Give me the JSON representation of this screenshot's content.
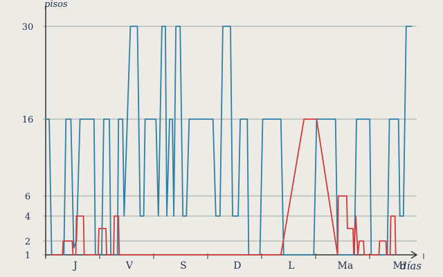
{
  "chart_data": {
    "type": "line",
    "title": "",
    "ylabel": "pisos",
    "xlabel": "días",
    "ylim": [
      1,
      30
    ],
    "y_ticks": [
      1,
      2,
      4,
      6,
      16,
      30
    ],
    "day_labels": [
      "J",
      "V",
      "S",
      "D",
      "L",
      "Ma",
      "Mi"
    ],
    "grid": true,
    "series": [
      {
        "color": "#2f7fa4",
        "points": [
          [
            0,
            16
          ],
          [
            0.1,
            16
          ],
          [
            0.17,
            1
          ],
          [
            0.52,
            1
          ],
          [
            0.58,
            16
          ],
          [
            0.72,
            16
          ],
          [
            0.8,
            1.5
          ],
          [
            0.88,
            2
          ],
          [
            0.98,
            16
          ],
          [
            1.38,
            16
          ],
          [
            1.42,
            1
          ],
          [
            1.6,
            1
          ],
          [
            1.66,
            16
          ],
          [
            1.82,
            16
          ],
          [
            1.86,
            1
          ],
          [
            2.05,
            1
          ],
          [
            2.08,
            16
          ],
          [
            2.2,
            16
          ],
          [
            2.24,
            4
          ],
          [
            2.42,
            30
          ],
          [
            2.62,
            30
          ],
          [
            2.7,
            4
          ],
          [
            2.8,
            4
          ],
          [
            2.84,
            16
          ],
          [
            3.15,
            16
          ],
          [
            3.22,
            4
          ],
          [
            3.32,
            30
          ],
          [
            3.42,
            30
          ],
          [
            3.46,
            4
          ],
          [
            3.54,
            16
          ],
          [
            3.62,
            16
          ],
          [
            3.66,
            4
          ],
          [
            3.72,
            30
          ],
          [
            3.84,
            30
          ],
          [
            3.92,
            4
          ],
          [
            4.02,
            4
          ],
          [
            4.1,
            16
          ],
          [
            4.78,
            16
          ],
          [
            4.86,
            4
          ],
          [
            4.98,
            4
          ],
          [
            5.06,
            30
          ],
          [
            5.28,
            30
          ],
          [
            5.34,
            4
          ],
          [
            5.5,
            4
          ],
          [
            5.56,
            16
          ],
          [
            5.76,
            16
          ],
          [
            5.8,
            1
          ],
          [
            6.12,
            1
          ],
          [
            6.2,
            16
          ],
          [
            6.72,
            16
          ],
          [
            6.8,
            1
          ],
          [
            7.66,
            1
          ],
          [
            7.74,
            16
          ],
          [
            8.28,
            16
          ],
          [
            8.34,
            1
          ],
          [
            8.82,
            1
          ],
          [
            8.88,
            16
          ],
          [
            9.26,
            16
          ],
          [
            9.3,
            1
          ],
          [
            9.76,
            1
          ],
          [
            9.82,
            16
          ],
          [
            10.08,
            16
          ],
          [
            10.12,
            4
          ],
          [
            10.22,
            4
          ],
          [
            10.3,
            30
          ],
          [
            10.45,
            30
          ]
        ]
      },
      {
        "color": "#d23a3a",
        "points": [
          [
            0.17,
            1
          ],
          [
            0.48,
            1
          ],
          [
            0.5,
            2
          ],
          [
            0.76,
            2
          ],
          [
            0.78,
            1
          ],
          [
            0.86,
            1
          ],
          [
            0.88,
            4
          ],
          [
            1.08,
            4
          ],
          [
            1.1,
            1
          ],
          [
            1.5,
            1
          ],
          [
            1.52,
            3
          ],
          [
            1.72,
            3
          ],
          [
            1.74,
            1
          ],
          [
            1.94,
            1
          ],
          [
            1.96,
            4
          ],
          [
            2.08,
            4
          ],
          [
            2.1,
            1
          ],
          [
            6.2,
            1
          ],
          [
            6.6,
            1
          ],
          [
            6.72,
            1
          ],
          [
            7.38,
            16
          ],
          [
            7.74,
            16
          ],
          [
            8.34,
            1
          ],
          [
            8.36,
            6
          ],
          [
            8.6,
            6
          ],
          [
            8.62,
            3
          ],
          [
            8.78,
            3
          ],
          [
            8.8,
            1
          ],
          [
            8.86,
            4
          ],
          [
            8.92,
            1
          ],
          [
            8.96,
            2
          ],
          [
            9.08,
            2
          ],
          [
            9.1,
            1
          ],
          [
            9.52,
            1
          ],
          [
            9.54,
            2
          ],
          [
            9.72,
            2
          ],
          [
            9.74,
            1
          ],
          [
            9.84,
            1
          ],
          [
            9.86,
            4
          ],
          [
            9.98,
            4
          ],
          [
            10.0,
            1
          ]
        ]
      }
    ]
  }
}
